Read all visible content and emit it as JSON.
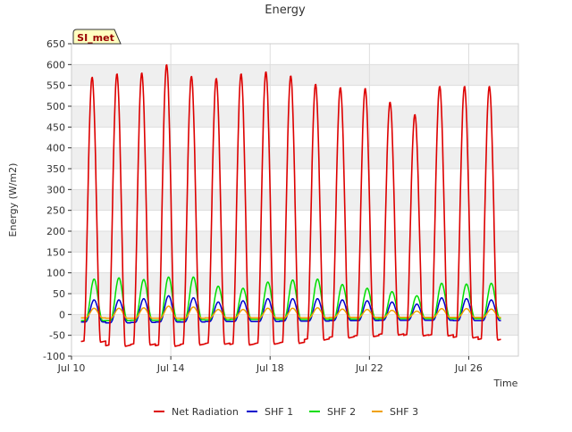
{
  "chart_data": {
    "type": "line",
    "title": "Energy",
    "xlabel": "Time",
    "ylabel": "Energy (W/m2)",
    "site_label": "SI_met",
    "ylim": [
      -100,
      650
    ],
    "yticks": [
      -100,
      -50,
      0,
      50,
      100,
      150,
      200,
      250,
      300,
      350,
      400,
      450,
      500,
      550,
      600,
      650
    ],
    "xlim_days": [
      10,
      28
    ],
    "xticks": [
      {
        "day": 10,
        "label": "Jul 10"
      },
      {
        "day": 14,
        "label": "Jul 14"
      },
      {
        "day": 18,
        "label": "Jul 18"
      },
      {
        "day": 22,
        "label": "Jul 22"
      },
      {
        "day": 26,
        "label": "Jul 26"
      }
    ],
    "grid": true,
    "legend_position": "bottom",
    "series": [
      {
        "name": "Net Radiation",
        "color": "#dd0000",
        "peaks": [
          570,
          578,
          580,
          600,
          572,
          567,
          578,
          583,
          573,
          553,
          545,
          543,
          510,
          480,
          548,
          548,
          548
        ],
        "night": [
          -65,
          -75,
          -72,
          -75,
          -72,
          -70,
          -72,
          -70,
          -68,
          -60,
          -55,
          -52,
          -48,
          -50,
          -50,
          -55,
          -60
        ]
      },
      {
        "name": "SHF 1",
        "color": "#0000cc",
        "peaks": [
          35,
          35,
          38,
          45,
          40,
          30,
          33,
          38,
          38,
          38,
          35,
          33,
          30,
          25,
          40,
          38,
          35
        ],
        "night": [
          -18,
          -20,
          -19,
          -18,
          -18,
          -17,
          -17,
          -17,
          -16,
          -16,
          -15,
          -15,
          -14,
          -14,
          -14,
          -15,
          -15
        ]
      },
      {
        "name": "SHF 2",
        "color": "#00dd00",
        "peaks": [
          85,
          88,
          84,
          90,
          90,
          68,
          63,
          78,
          83,
          85,
          72,
          63,
          55,
          45,
          75,
          73,
          75
        ],
        "night": [
          -15,
          -15,
          -14,
          -14,
          -13,
          -13,
          -12,
          -12,
          -12,
          -12,
          -11,
          -11,
          -10,
          -10,
          -10,
          -10,
          -10
        ]
      },
      {
        "name": "SHF 3",
        "color": "#f0a000",
        "peaks": [
          15,
          15,
          16,
          20,
          18,
          12,
          12,
          15,
          15,
          16,
          13,
          12,
          10,
          8,
          14,
          14,
          13
        ],
        "night": [
          -8,
          -9,
          -9,
          -9,
          -9,
          -8,
          -8,
          -8,
          -8,
          -8,
          -7,
          -7,
          -7,
          -7,
          -7,
          -7,
          -7
        ]
      }
    ]
  }
}
